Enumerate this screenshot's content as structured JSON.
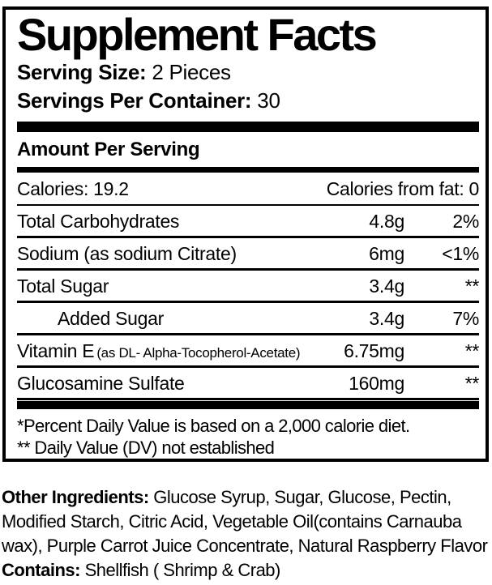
{
  "label": {
    "title": "Supplement Facts",
    "serving_size": {
      "label": "Serving Size:",
      "value": "2 Pieces"
    },
    "servings_per_container": {
      "label": "Servings Per Container:",
      "value": "30"
    },
    "amount_per_serving": "Amount Per Serving",
    "calories": {
      "left": "Calories: 19.2",
      "right": "Calories from fat: 0"
    },
    "rows": [
      {
        "name": "Total Carbohydrates",
        "name_small": "",
        "amount": "4.8g",
        "dv": "2%"
      },
      {
        "name": "Sodium (as sodium Citrate)",
        "name_small": "",
        "amount": "6mg",
        "dv": "<1%"
      },
      {
        "name": "Total Sugar",
        "name_small": "",
        "amount": "3.4g",
        "dv": "**"
      },
      {
        "name": "Added Sugar",
        "name_small": "",
        "amount": "3.4g",
        "dv": "7%"
      },
      {
        "name": "Vitamin E",
        "name_small": "(as DL- Alpha-Tocopherol-Acetate)",
        "amount": "6.75mg",
        "dv": "**"
      },
      {
        "name": "Glucosamine Sulfate",
        "name_small": "",
        "amount": "160mg",
        "dv": "**"
      }
    ],
    "footnotes": [
      "*Percent Daily Value is based on a 2,000 calorie diet.",
      "** Daily Value (DV) not established"
    ]
  },
  "other_ingredients": {
    "label": "Other Ingredients:",
    "text": " Glucose Syrup, Sugar, Glucose, Pectin, Modified Starch, Citric Acid, Vegetable Oil(contains Carnauba wax), Purple Carrot Juice Concentrate, Natural Raspberry Flavor ",
    "contains_label": "Contains:",
    "contains_text": " Shellfish ( Shrimp & Crab)"
  },
  "colors": {
    "text": "#000000",
    "background": "#ffffff"
  }
}
